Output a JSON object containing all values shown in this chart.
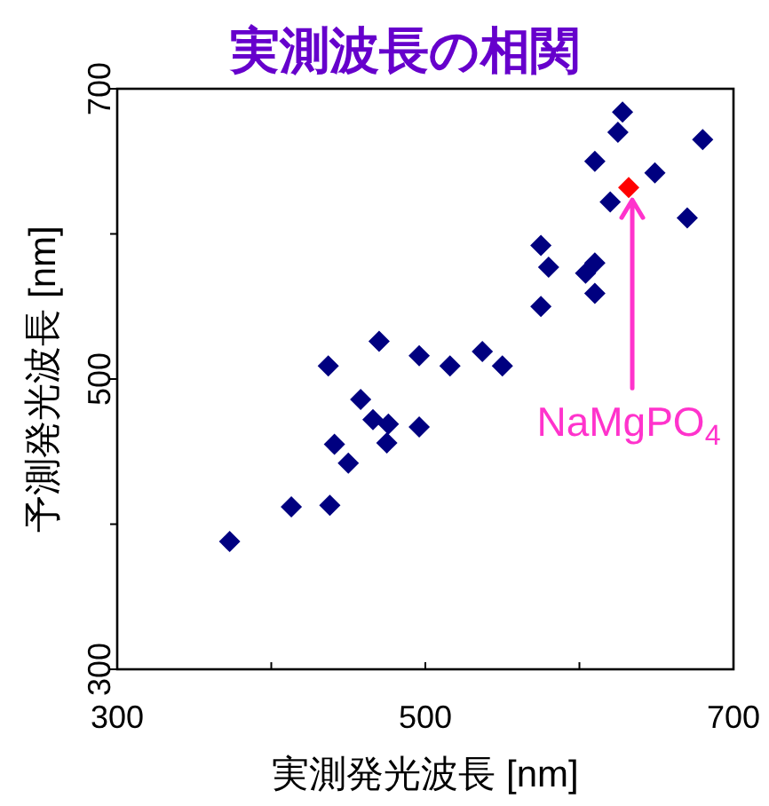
{
  "chart_data": {
    "type": "scatter",
    "title": "実測波長の相関",
    "xlabel": "実測発光波長 [nm]",
    "ylabel": "予測発光波長 [nm]",
    "marker": "diamond",
    "xlim": [
      300,
      700
    ],
    "ylim": [
      300,
      700
    ],
    "xticks": [
      300,
      {
        "value": 400,
        "label": null
      },
      500,
      {
        "value": 600,
        "label": null
      },
      700
    ],
    "yticks": [
      300,
      {
        "value": 400,
        "label": null
      },
      500,
      {
        "value": 600,
        "label": null
      },
      700
    ],
    "series": [
      {
        "color": "#000080",
        "x": [
          373,
          413,
          438,
          437,
          470,
          496,
          458,
          466,
          476,
          441,
          475,
          450,
          496,
          516,
          537,
          550,
          575,
          580,
          575,
          610,
          604,
          610,
          610,
          628,
          625,
          649,
          620,
          670,
          680
        ],
        "values": [
          388,
          412,
          413,
          509,
          526,
          516,
          486,
          472,
          469,
          455,
          456,
          442,
          467,
          509,
          519,
          509,
          592,
          577,
          550,
          580,
          573,
          559,
          650,
          684,
          670,
          642,
          622,
          611,
          665
        ]
      },
      {
        "color": "#ff0000",
        "x": [
          632
        ],
        "values": [
          632
        ]
      }
    ],
    "annotations": [
      {
        "text": "NaMgPO$_{4}$",
        "x": 632,
        "y": 632
      }
    ]
  }
}
